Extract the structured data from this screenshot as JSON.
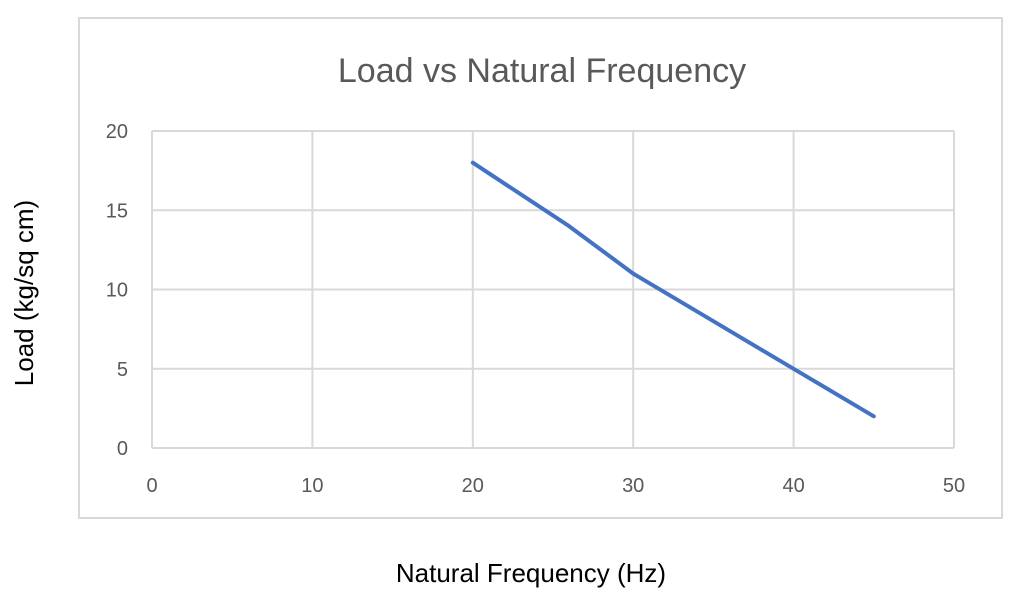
{
  "chart_data": {
    "type": "line",
    "title": "Load vs Natural Frequency",
    "xlabel": "Natural Frequency (Hz)",
    "ylabel": "Load (kg/sq cm)",
    "xlim": [
      0,
      50
    ],
    "ylim": [
      0,
      20
    ],
    "xticks": [
      0,
      10,
      20,
      30,
      40,
      50
    ],
    "yticks": [
      0,
      5,
      10,
      15,
      20
    ],
    "grid": true,
    "legend": "none",
    "series": [
      {
        "name": "Load",
        "color": "#4472C4",
        "x": [
          20,
          26,
          30,
          35,
          40,
          45
        ],
        "y": [
          18,
          14,
          11,
          8,
          5,
          2
        ]
      }
    ]
  },
  "colors": {
    "grid": "#d9d9d9",
    "frame": "#d9d9d9",
    "line": "#4472C4"
  }
}
